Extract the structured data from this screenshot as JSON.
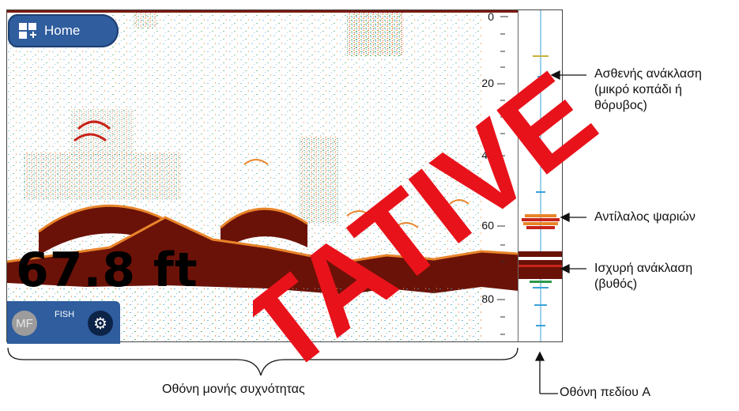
{
  "home_button": {
    "label": "Home",
    "icon": "grid-plus-icon"
  },
  "depth": {
    "value": "67.8 ft"
  },
  "mode_box": {
    "badge": "MF",
    "mode": "FISH",
    "settings_icon": "gear-icon"
  },
  "depth_scale": {
    "labels": [
      "0",
      "20",
      "40",
      "60",
      "80"
    ]
  },
  "callouts": {
    "weak_echo": {
      "line1": "Ασθενής ανάκλαση",
      "line2": "(μικρό κοπάδι ή",
      "line3": "θόρυβος)"
    },
    "fish_echo": {
      "line1": "Αντίλαλος ψαριών"
    },
    "strong_echo": {
      "line1": "Ισχυρή ανάκλαση",
      "line2": "(βυθός)"
    }
  },
  "captions": {
    "single_freq": "Οθόνη μονής συχνότητας",
    "a_scope": "Οθόνη πεδίου A"
  },
  "watermark": {
    "text": "TATIVE"
  },
  "colors": {
    "accent_blue": "#2f5d9e",
    "bottom_echo": "#6b1208",
    "strong_echo": "#c6231a",
    "mid_echo": "#e8842a",
    "weak_echo": "#3aa2d8",
    "watermark": "#e8121b"
  }
}
